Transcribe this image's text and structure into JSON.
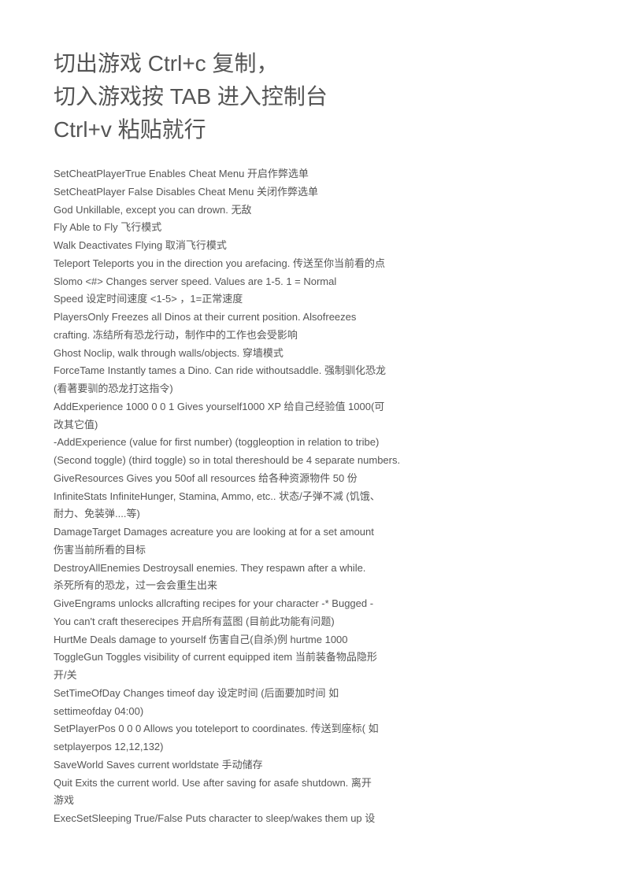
{
  "heading": {
    "line1": " 切出游戏 Ctrl+c 复制，",
    "line2": "切入游戏按 TAB  进入控制台",
    "line3": "Ctrl+v 粘贴就行"
  },
  "lines": [
    "SetCheatPlayerTrue            Enables Cheat Menu   开启作弊选单",
    "SetCheatPlayer False           Disables Cheat Menu   关闭作弊选单",
    "God        Unkillable, except you can drown.    无敌",
    "Fly           Able to Fly      飞行模式",
    "Walk       Deactivates Flying    取消飞行模式",
    "Teleport        Teleports you in the direction you arefacing.  传送至你当前看的点",
    "Slomo <#>            Changes server speed. Values are 1-5. 1 = Normal",
    "Speed    设定时间速度 <1-5> ，1=正常速度",
    "PlayersOnly         Freezes all Dinos at their current position. Alsofreezes",
    "crafting.   冻结所有恐龙行动，制作中的工作也会受影响",
    "Ghost       Noclip, walk through walls/objects.   穿墙模式",
    "ForceTame         Instantly tames a Dino. Can ride withoutsaddle.   强制驯化恐龙",
    "(看著要驯的恐龙打这指令)",
    "AddExperience 1000 0 0 1        Gives yourself1000 XP   给自己经验值  1000(可",
    "改其它值)",
    "-AddExperience (value for first number) (toggleoption in relation to tribe)",
    "(Second toggle) (third toggle) so in total thereshould be 4 separate numbers.",
    "GiveResources        Gives you 50of all resources    给各种资源物件 50 份",
    "InfiniteStats       InfiniteHunger, Stamina, Ammo, etc..     状态/子弹不减 (饥饿、",
    "耐力、免装弹....等)",
    "DamageTarget        Damages acreature you are looking at for a set amount",
    "  伤害当前所看的目标",
    "DestroyAllEnemies           Destroysall enemies. They respawn after a while.",
    " 杀死所有的恐龙，过一会会重生出来",
    "GiveEngrams        unlocks allcrafting recipes for your character -* Bugged -",
    "You can't craft theserecipes     开启所有蓝图  (目前此功能有问题)",
    "HurtMe          Deals damage to yourself     伤害自己(自杀)例  hurtme 1000",
    "ToggleGun        Toggles visibility of current equipped item    当前装备物品隐形",
    "开/关",
    "SetTimeOfDay        Changes timeof day  设定时间  (后面要加时间  如",
    "settimeofday 04:00)",
    "SetPlayerPos 0 0 0        Allows you toteleport to coordinates.   传送到座标(  如",
    "setplayerpos 12,12,132)",
    "SaveWorld        Saves current worldstate    手动储存",
    "Quit        Exits the current world. Use after saving for asafe shutdown.    离开",
    "游戏",
    "ExecSetSleeping True/False          Puts character to sleep/wakes them up    设"
  ]
}
